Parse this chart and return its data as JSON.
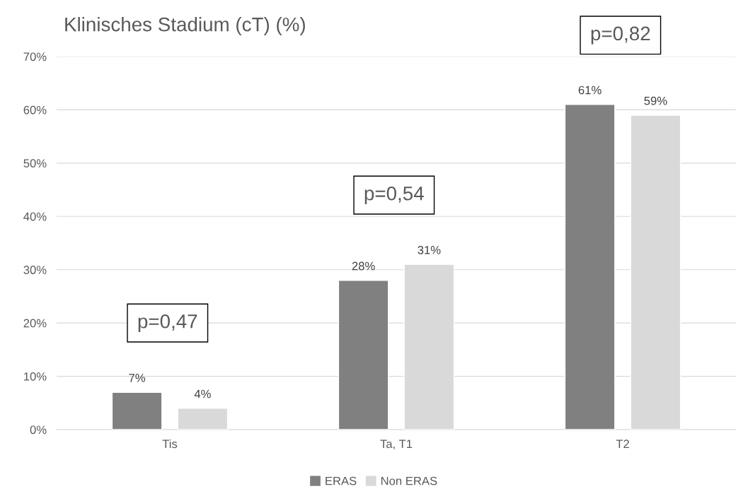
{
  "chart_data": {
    "type": "bar",
    "title": "Klinisches Stadium (cT) (%)",
    "categories": [
      "Tis",
      "Ta, T1",
      "T2"
    ],
    "series": [
      {
        "name": "ERAS",
        "color": "#808080",
        "values": [
          7,
          28,
          61
        ],
        "value_labels": [
          "7%",
          "28%",
          "61%"
        ]
      },
      {
        "name": "Non ERAS",
        "color": "#d9d9d9",
        "values": [
          4,
          31,
          59
        ],
        "value_labels": [
          "4%",
          "31%",
          "59%"
        ]
      }
    ],
    "ylim": [
      0,
      70
    ],
    "yticks": [
      {
        "value": 0,
        "label": "0%"
      },
      {
        "value": 10,
        "label": "10%"
      },
      {
        "value": 20,
        "label": "20%"
      },
      {
        "value": 30,
        "label": "30%"
      },
      {
        "value": 40,
        "label": "40%"
      },
      {
        "value": 50,
        "label": "50%"
      },
      {
        "value": 60,
        "label": "60%"
      },
      {
        "value": 70,
        "label": "70%"
      }
    ],
    "annotations": [
      "p=0,47",
      "p=0,54",
      "p=0,82"
    ],
    "grid": "y",
    "legend": "bottom"
  }
}
